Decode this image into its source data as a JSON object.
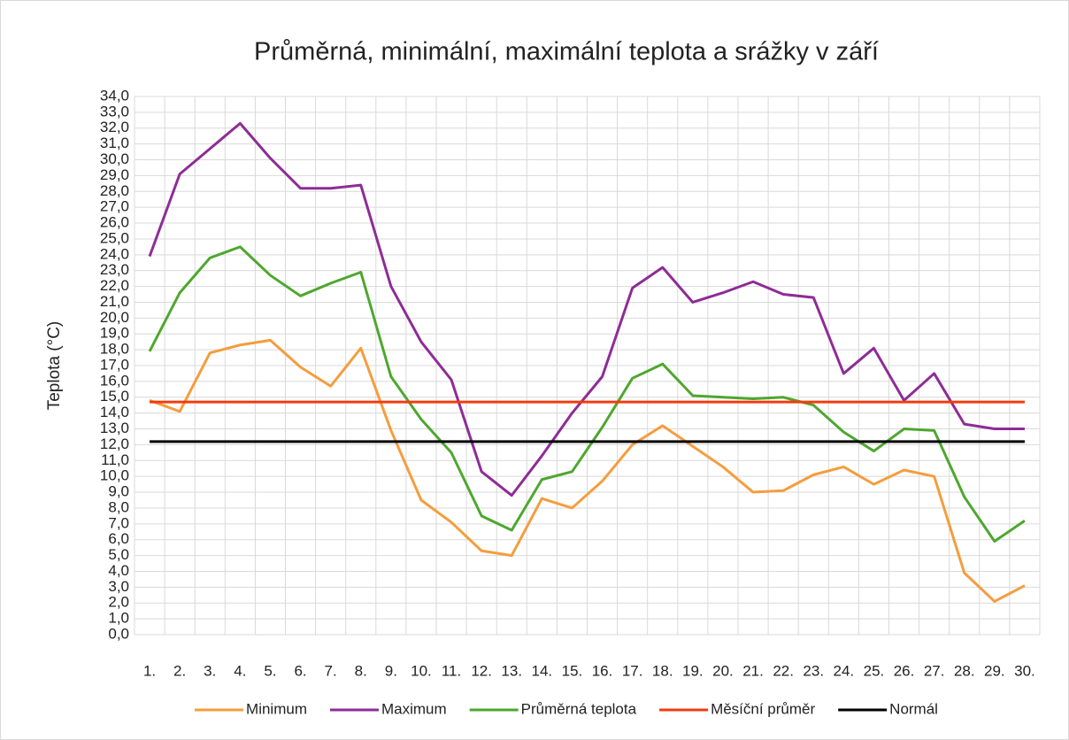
{
  "chart_data": {
    "type": "line",
    "title": "Průměrná, minimální, maximální teplota a srážky v září",
    "y_label": "Teplota (°C)",
    "categories": [
      "1.",
      "2.",
      "3.",
      "4.",
      "5.",
      "6.",
      "7.",
      "8.",
      "9.",
      "10.",
      "11.",
      "12.",
      "13.",
      "14.",
      "15.",
      "16.",
      "17.",
      "18.",
      "19.",
      "20.",
      "21.",
      "22.",
      "23.",
      "24.",
      "25.",
      "26.",
      "27.",
      "28.",
      "29.",
      "30."
    ],
    "series": [
      {
        "name": "Minimum",
        "color": "#f59d3d",
        "values": [
          14.8,
          14.1,
          17.8,
          18.3,
          18.6,
          16.9,
          15.7,
          18.1,
          12.9,
          8.5,
          7.1,
          5.3,
          5.0,
          8.6,
          8.0,
          9.7,
          12.0,
          13.2,
          11.9,
          10.6,
          9.0,
          9.1,
          10.1,
          10.6,
          9.5,
          10.4,
          10.0,
          3.9,
          2.1,
          3.1
        ]
      },
      {
        "name": "Maximum",
        "color": "#8e2c96",
        "values": [
          23.9,
          29.1,
          30.7,
          32.3,
          30.1,
          28.2,
          28.2,
          28.4,
          22.0,
          18.5,
          16.1,
          10.3,
          8.8,
          11.3,
          14.0,
          16.3,
          21.9,
          23.2,
          21.0,
          21.6,
          22.3,
          21.5,
          21.3,
          16.5,
          18.1,
          14.8,
          16.5,
          13.3,
          13.0,
          13.0
        ]
      },
      {
        "name": "Průměrná teplota",
        "color": "#4ea72e",
        "values": [
          17.9,
          21.6,
          23.8,
          24.5,
          22.7,
          21.4,
          22.2,
          22.9,
          16.3,
          13.6,
          11.5,
          7.5,
          6.6,
          9.8,
          10.3,
          13.1,
          16.2,
          17.1,
          15.1,
          15.0,
          14.9,
          15.0,
          14.5,
          12.8,
          11.6,
          13.0,
          12.9,
          8.7,
          5.9,
          7.2
        ]
      },
      {
        "name": "Měsíční průměr",
        "color": "#f03c0f",
        "values": [
          14.7,
          14.7,
          14.7,
          14.7,
          14.7,
          14.7,
          14.7,
          14.7,
          14.7,
          14.7,
          14.7,
          14.7,
          14.7,
          14.7,
          14.7,
          14.7,
          14.7,
          14.7,
          14.7,
          14.7,
          14.7,
          14.7,
          14.7,
          14.7,
          14.7,
          14.7,
          14.7,
          14.7,
          14.7,
          14.7
        ]
      },
      {
        "name": "Normál",
        "color": "#000000",
        "values": [
          12.2,
          12.2,
          12.2,
          12.2,
          12.2,
          12.2,
          12.2,
          12.2,
          12.2,
          12.2,
          12.2,
          12.2,
          12.2,
          12.2,
          12.2,
          12.2,
          12.2,
          12.2,
          12.2,
          12.2,
          12.2,
          12.2,
          12.2,
          12.2,
          12.2,
          12.2,
          12.2,
          12.2,
          12.2,
          12.2
        ]
      }
    ],
    "ylim": [
      0,
      34
    ],
    "yticks": [
      {
        "value": 0,
        "label": "0,0"
      },
      {
        "value": 1,
        "label": "1,0"
      },
      {
        "value": 2,
        "label": "2,0"
      },
      {
        "value": 3,
        "label": "3,0"
      },
      {
        "value": 4,
        "label": "4,0"
      },
      {
        "value": 5,
        "label": "5,0"
      },
      {
        "value": 6,
        "label": "6,0"
      },
      {
        "value": 7,
        "label": "7,0"
      },
      {
        "value": 8,
        "label": "8,0"
      },
      {
        "value": 9,
        "label": "9,0"
      },
      {
        "value": 10,
        "label": "10,0"
      },
      {
        "value": 11,
        "label": "11,0"
      },
      {
        "value": 12,
        "label": "12,0"
      },
      {
        "value": 13,
        "label": "13,0"
      },
      {
        "value": 14,
        "label": "14,0"
      },
      {
        "value": 15,
        "label": "15,0"
      },
      {
        "value": 16,
        "label": "16,0"
      },
      {
        "value": 17,
        "label": "17,0"
      },
      {
        "value": 18,
        "label": "18,0"
      },
      {
        "value": 19,
        "label": "19,0"
      },
      {
        "value": 20,
        "label": "20,0"
      },
      {
        "value": 21,
        "label": "21,0"
      },
      {
        "value": 22,
        "label": "22,0"
      },
      {
        "value": 23,
        "label": "23,0"
      },
      {
        "value": 24,
        "label": "24,0"
      },
      {
        "value": 25,
        "label": "25,0"
      },
      {
        "value": 26,
        "label": "26,0"
      },
      {
        "value": 27,
        "label": "27,0"
      },
      {
        "value": 28,
        "label": "28,0"
      },
      {
        "value": 29,
        "label": "29,0"
      },
      {
        "value": 30,
        "label": "30,0"
      },
      {
        "value": 31,
        "label": "31,0"
      },
      {
        "value": 32,
        "label": "32,0"
      },
      {
        "value": 33,
        "label": "33,0"
      },
      {
        "value": 34,
        "label": "34,0"
      }
    ],
    "grid": true,
    "legend": "bottom"
  }
}
